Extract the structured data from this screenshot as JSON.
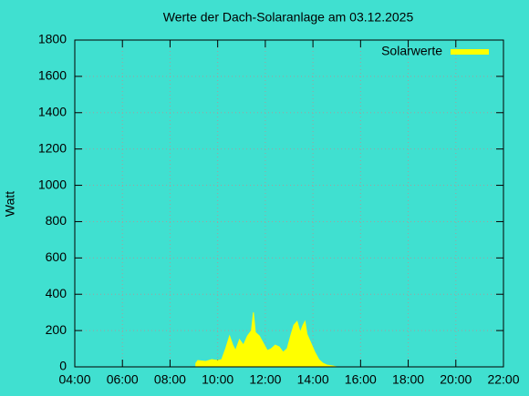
{
  "chart_data": {
    "type": "area",
    "title": "Werte der Dach-Solaranlage am 03.12.2025",
    "ylabel": "Watt",
    "x": [
      "09:05",
      "09:10",
      "09:30",
      "09:45",
      "10:00",
      "10:10",
      "10:20",
      "10:30",
      "10:38",
      "10:45",
      "10:55",
      "11:05",
      "11:15",
      "11:25",
      "11:30",
      "11:35",
      "11:45",
      "11:55",
      "12:05",
      "12:15",
      "12:25",
      "12:35",
      "12:45",
      "12:55",
      "13:05",
      "13:12",
      "13:20",
      "13:28",
      "13:35",
      "13:40",
      "13:45",
      "13:55",
      "14:05",
      "14:15",
      "14:25",
      "14:35",
      "14:50",
      "15:00"
    ],
    "series": [
      {
        "name": "Solarwerte",
        "color": "#ffff00",
        "values": [
          20,
          35,
          30,
          40,
          35,
          40,
          100,
          170,
          120,
          90,
          150,
          120,
          170,
          200,
          300,
          190,
          170,
          130,
          90,
          100,
          120,
          110,
          80,
          100,
          180,
          230,
          250,
          190,
          230,
          250,
          180,
          130,
          80,
          40,
          20,
          10,
          5,
          0
        ]
      }
    ],
    "xlim": [
      "04:00",
      "22:00"
    ],
    "xticks": [
      "04:00",
      "06:00",
      "08:00",
      "10:00",
      "12:00",
      "14:00",
      "16:00",
      "18:00",
      "20:00",
      "22:00"
    ],
    "ylim": [
      0,
      1800
    ],
    "yticks": [
      0,
      200,
      400,
      600,
      800,
      1000,
      1200,
      1400,
      1600,
      1800
    ],
    "grid": true,
    "legend": "top-right"
  }
}
